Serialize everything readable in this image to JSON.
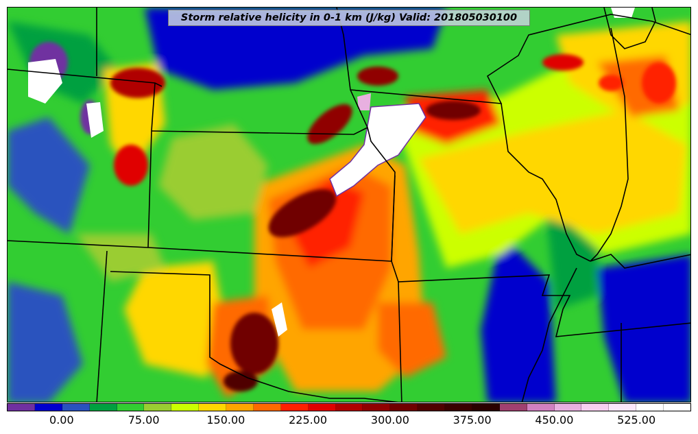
{
  "title": "Storm relative helicity in 0-1 km (J/kg) Valid: 201805030100",
  "colorbar": {
    "colors": [
      "#7030a0",
      "#0000cd",
      "#2a52be",
      "#00a040",
      "#32cd32",
      "#9acd32",
      "#ccff00",
      "#ffd700",
      "#ffa500",
      "#ff6a00",
      "#ff2000",
      "#e00000",
      "#b00000",
      "#900000",
      "#700000",
      "#500000",
      "#3a0000",
      "#2a0000",
      "#a04070",
      "#d080c0",
      "#e8b0e0",
      "#f8d0f0",
      "#fce8fb",
      "#ffffff",
      "#ffffff"
    ],
    "tick_labels": [
      "0.00",
      "75.00",
      "150.00",
      "225.00",
      "300.00",
      "375.00",
      "450.00",
      "525.00"
    ],
    "tick_values": [
      0,
      75,
      150,
      225,
      300,
      375,
      450,
      525
    ],
    "vmin": -50,
    "vmax": 575
  },
  "map": {
    "field": "storm-relative-helicity-0-1km",
    "units": "J/kg",
    "valid": "201805030100",
    "basemap": "state-boundaries"
  }
}
